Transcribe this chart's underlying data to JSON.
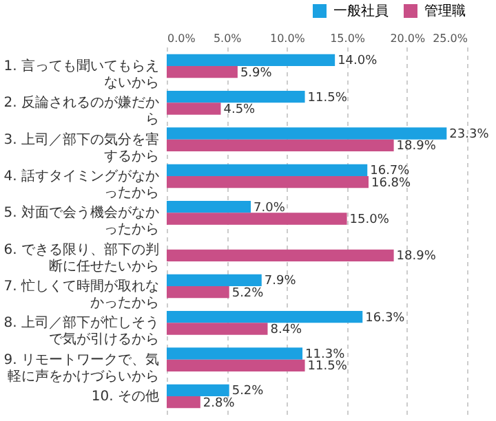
{
  "chart_data": {
    "type": "bar",
    "orientation": "horizontal",
    "categories": [
      "1. 言っても聞いてもらえないから",
      "2. 反論されるのが嫌だから",
      "3. 上司／部下の気分を害するから",
      "4. 話すタイミングがなかったから",
      "5. 対面で会う機会がなかったから",
      "6. できる限り、部下の判断に任せたいから",
      "7. 忙しくて時間が取れなかったから",
      "8. 上司／部下が忙しそうで気が引けるから",
      "9. リモートワークで、気軽に声をかけづらいから",
      "10. その他"
    ],
    "series": [
      {
        "name": "一般社員",
        "color": "#1ba1e2",
        "values": [
          14.0,
          11.5,
          23.3,
          16.7,
          7.0,
          null,
          7.9,
          16.3,
          11.3,
          5.2
        ],
        "value_labels": [
          "14.0%",
          "11.5%",
          "23.3%",
          "16.7%",
          "7.0%",
          null,
          "7.9%",
          "16.3%",
          "11.3%",
          "5.2%"
        ]
      },
      {
        "name": "管理職",
        "color": "#c94f87",
        "values": [
          5.9,
          4.5,
          18.9,
          16.8,
          15.0,
          18.9,
          5.2,
          8.4,
          11.5,
          2.8
        ],
        "value_labels": [
          "5.9%",
          "4.5%",
          "18.9%",
          "16.8%",
          "15.0%",
          "18.9%",
          "5.2%",
          "8.4%",
          "11.5%",
          "2.8%"
        ]
      }
    ],
    "xlim": [
      0,
      25
    ],
    "xticks": [
      {
        "value": 0,
        "label": "0.0%"
      },
      {
        "value": 5,
        "label": "5.0%"
      },
      {
        "value": 10,
        "label": "10.0%"
      },
      {
        "value": 15,
        "label": "15.0%"
      },
      {
        "value": 20,
        "label": "20.0%"
      },
      {
        "value": 25,
        "label": "25.0%"
      }
    ],
    "grid": "x",
    "legend": "top right"
  }
}
